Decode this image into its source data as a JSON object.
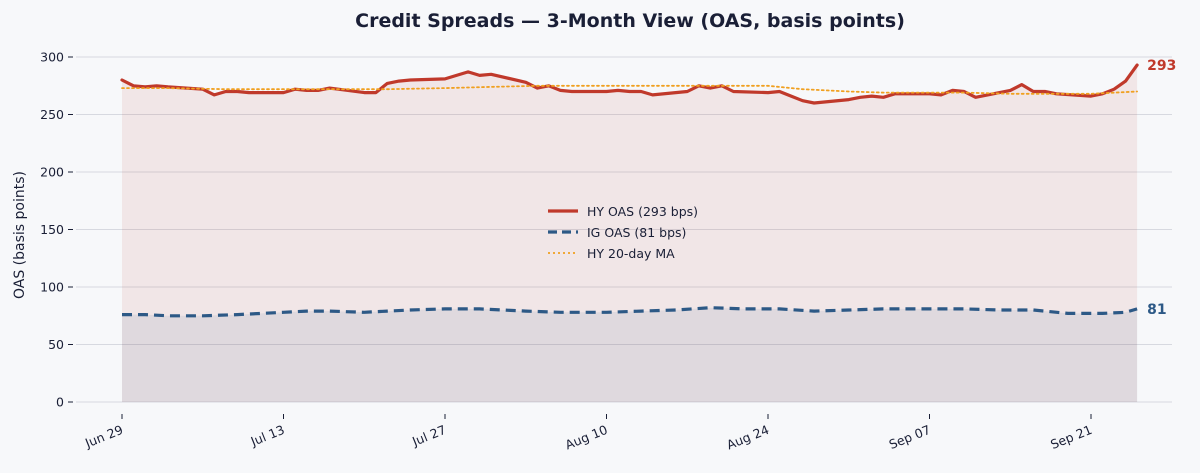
{
  "chart_data": {
    "type": "line",
    "title": "Credit Spreads — 3-Month View (OAS, basis points)",
    "xlabel": "",
    "ylabel": "OAS (basis points)",
    "ylim": [
      0,
      300
    ],
    "yticks": [
      0,
      50,
      100,
      150,
      200,
      250,
      300
    ],
    "x_start": "2025-06-29",
    "xticks": [
      {
        "date": "2025-06-29",
        "label": "Jun 29"
      },
      {
        "date": "2025-07-13",
        "label": "Jul 13"
      },
      {
        "date": "2025-07-27",
        "label": "Jul 27"
      },
      {
        "date": "2025-08-10",
        "label": "Aug 10"
      },
      {
        "date": "2025-08-24",
        "label": "Aug 24"
      },
      {
        "date": "2025-09-07",
        "label": "Sep 07"
      },
      {
        "date": "2025-09-21",
        "label": "Sep 21"
      }
    ],
    "grid": true,
    "legend_position": "center",
    "series": [
      {
        "name": "HY OAS  (293 bps)",
        "style": "solid",
        "color": "#c0392b",
        "fill": true,
        "end_label": "293",
        "points": [
          [
            "2025-06-29",
            280
          ],
          [
            "2025-06-30",
            275
          ],
          [
            "2025-07-01",
            274
          ],
          [
            "2025-07-02",
            275
          ],
          [
            "2025-07-03",
            274
          ],
          [
            "2025-07-06",
            272
          ],
          [
            "2025-07-07",
            267
          ],
          [
            "2025-07-08",
            270
          ],
          [
            "2025-07-09",
            270
          ],
          [
            "2025-07-10",
            269
          ],
          [
            "2025-07-13",
            269
          ],
          [
            "2025-07-14",
            272
          ],
          [
            "2025-07-15",
            271
          ],
          [
            "2025-07-16",
            271
          ],
          [
            "2025-07-17",
            273
          ],
          [
            "2025-07-20",
            269
          ],
          [
            "2025-07-21",
            269
          ],
          [
            "2025-07-22",
            277
          ],
          [
            "2025-07-23",
            279
          ],
          [
            "2025-07-24",
            280
          ],
          [
            "2025-07-27",
            281
          ],
          [
            "2025-07-28",
            284
          ],
          [
            "2025-07-29",
            287
          ],
          [
            "2025-07-30",
            284
          ],
          [
            "2025-07-31",
            285
          ],
          [
            "2025-08-03",
            278
          ],
          [
            "2025-08-04",
            273
          ],
          [
            "2025-08-05",
            275
          ],
          [
            "2025-08-06",
            271
          ],
          [
            "2025-08-07",
            270
          ],
          [
            "2025-08-10",
            270
          ],
          [
            "2025-08-11",
            271
          ],
          [
            "2025-08-12",
            270
          ],
          [
            "2025-08-13",
            270
          ],
          [
            "2025-08-14",
            267
          ],
          [
            "2025-08-17",
            270
          ],
          [
            "2025-08-18",
            275
          ],
          [
            "2025-08-19",
            273
          ],
          [
            "2025-08-20",
            275
          ],
          [
            "2025-08-21",
            270
          ],
          [
            "2025-08-24",
            269
          ],
          [
            "2025-08-25",
            270
          ],
          [
            "2025-08-26",
            266
          ],
          [
            "2025-08-27",
            262
          ],
          [
            "2025-08-28",
            260
          ],
          [
            "2025-08-31",
            263
          ],
          [
            "2025-09-01",
            265
          ],
          [
            "2025-09-02",
            266
          ],
          [
            "2025-09-03",
            265
          ],
          [
            "2025-09-04",
            268
          ],
          [
            "2025-09-07",
            268
          ],
          [
            "2025-09-08",
            267
          ],
          [
            "2025-09-09",
            271
          ],
          [
            "2025-09-10",
            270
          ],
          [
            "2025-09-11",
            265
          ],
          [
            "2025-09-14",
            271
          ],
          [
            "2025-09-15",
            276
          ],
          [
            "2025-09-16",
            270
          ],
          [
            "2025-09-17",
            270
          ],
          [
            "2025-09-18",
            268
          ],
          [
            "2025-09-21",
            266
          ],
          [
            "2025-09-22",
            268
          ],
          [
            "2025-09-23",
            272
          ],
          [
            "2025-09-24",
            279
          ],
          [
            "2025-09-25",
            293
          ]
        ]
      },
      {
        "name": "IG OAS  (81 bps)",
        "style": "dashed",
        "color": "#2d5986",
        "fill": true,
        "end_label": "81",
        "points": [
          [
            "2025-06-29",
            76
          ],
          [
            "2025-07-01",
            76
          ],
          [
            "2025-07-03",
            75
          ],
          [
            "2025-07-06",
            75
          ],
          [
            "2025-07-09",
            76
          ],
          [
            "2025-07-13",
            78
          ],
          [
            "2025-07-15",
            79
          ],
          [
            "2025-07-17",
            79
          ],
          [
            "2025-07-20",
            78
          ],
          [
            "2025-07-22",
            79
          ],
          [
            "2025-07-24",
            80
          ],
          [
            "2025-07-27",
            81
          ],
          [
            "2025-07-30",
            81
          ],
          [
            "2025-08-03",
            79
          ],
          [
            "2025-08-06",
            78
          ],
          [
            "2025-08-10",
            78
          ],
          [
            "2025-08-13",
            79
          ],
          [
            "2025-08-16",
            80
          ],
          [
            "2025-08-19",
            82
          ],
          [
            "2025-08-22",
            81
          ],
          [
            "2025-08-25",
            81
          ],
          [
            "2025-08-28",
            79
          ],
          [
            "2025-08-31",
            80
          ],
          [
            "2025-09-03",
            81
          ],
          [
            "2025-09-07",
            81
          ],
          [
            "2025-09-10",
            81
          ],
          [
            "2025-09-13",
            80
          ],
          [
            "2025-09-16",
            80
          ],
          [
            "2025-09-19",
            77
          ],
          [
            "2025-09-22",
            77
          ],
          [
            "2025-09-24",
            78
          ],
          [
            "2025-09-25",
            81
          ]
        ]
      },
      {
        "name": "HY 20-day MA",
        "style": "dotted",
        "color": "#f0a020",
        "fill": false,
        "points": [
          [
            "2025-06-29",
            273
          ],
          [
            "2025-07-03",
            273
          ],
          [
            "2025-07-08",
            272
          ],
          [
            "2025-07-13",
            272
          ],
          [
            "2025-07-17",
            272
          ],
          [
            "2025-07-22",
            272
          ],
          [
            "2025-07-27",
            273
          ],
          [
            "2025-07-31",
            274
          ],
          [
            "2025-08-04",
            275
          ],
          [
            "2025-08-10",
            275
          ],
          [
            "2025-08-14",
            275
          ],
          [
            "2025-08-19",
            275
          ],
          [
            "2025-08-24",
            275
          ],
          [
            "2025-08-27",
            272
          ],
          [
            "2025-08-31",
            270
          ],
          [
            "2025-09-03",
            269
          ],
          [
            "2025-09-07",
            269
          ],
          [
            "2025-09-10",
            269
          ],
          [
            "2025-09-14",
            268
          ],
          [
            "2025-09-19",
            268
          ],
          [
            "2025-09-21",
            268
          ],
          [
            "2025-09-25",
            270
          ]
        ]
      }
    ]
  }
}
